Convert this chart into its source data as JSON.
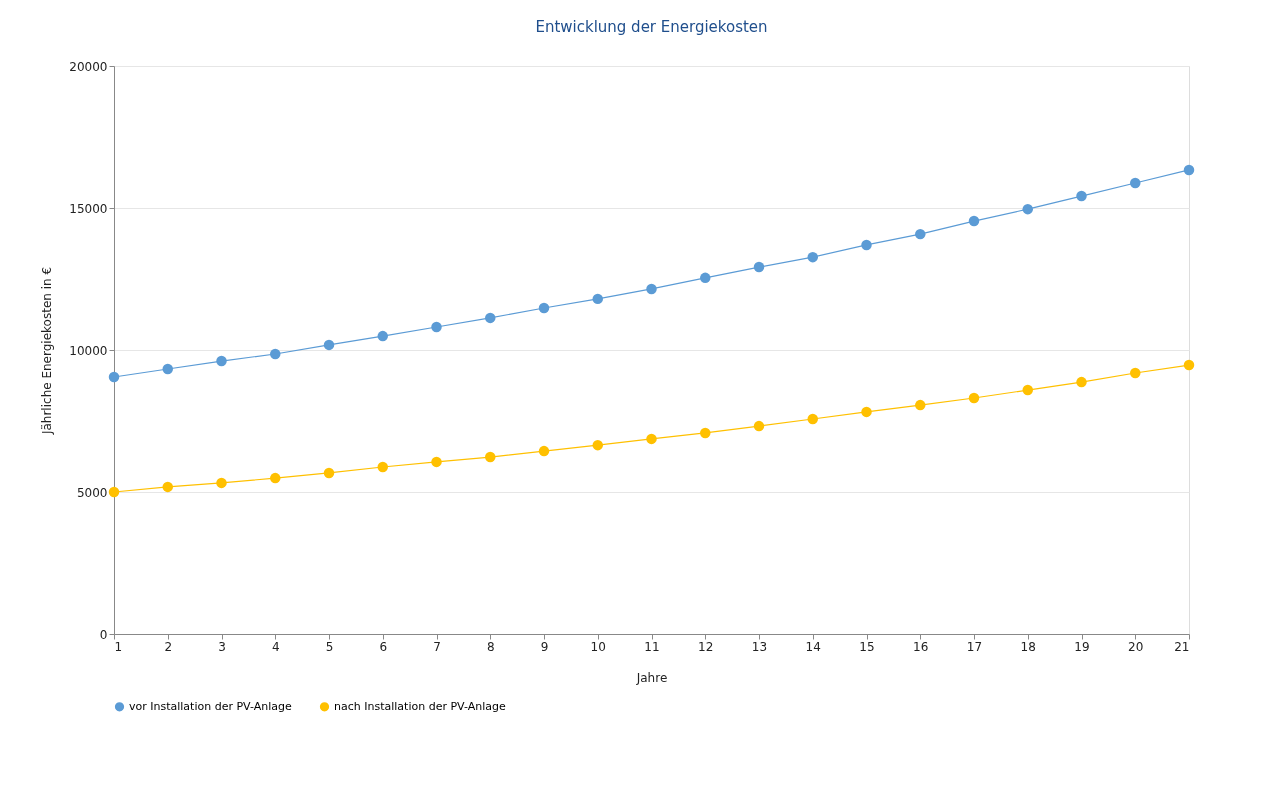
{
  "chart_data": {
    "type": "line",
    "title": "Entwicklung der Energiekosten",
    "xlabel": "Jahre",
    "ylabel": "Jährliche Energiekosten in €",
    "x": [
      1,
      2,
      3,
      4,
      5,
      6,
      7,
      8,
      9,
      10,
      11,
      12,
      13,
      14,
      15,
      16,
      17,
      18,
      19,
      20,
      21
    ],
    "series": [
      {
        "name": "vor Installation der PV-Anlage",
        "color": "#5b9bd5",
        "values": [
          9050,
          9330,
          9610,
          9860,
          10180,
          10490,
          10810,
          11130,
          11480,
          11800,
          12150,
          12540,
          12920,
          13270,
          13700,
          14080,
          14540,
          14960,
          15420,
          15880,
          16340
        ]
      },
      {
        "name": "nach Installation der PV-Anlage",
        "color": "#ffc000",
        "values": [
          5000,
          5180,
          5320,
          5490,
          5670,
          5880,
          6060,
          6230,
          6440,
          6650,
          6870,
          7080,
          7320,
          7570,
          7820,
          8060,
          8310,
          8590,
          8870,
          9190,
          9470
        ]
      }
    ],
    "xlim": [
      1,
      21
    ],
    "xticks": [
      1,
      2,
      3,
      4,
      5,
      6,
      7,
      8,
      9,
      10,
      11,
      12,
      13,
      14,
      15,
      16,
      17,
      18,
      19,
      20,
      21
    ],
    "ylim": [
      0,
      20000
    ],
    "yticks": [
      0,
      5000,
      10000,
      15000,
      20000
    ],
    "grid": "y",
    "legend": "bottom left",
    "marker": "circle",
    "line_style": "solid"
  }
}
